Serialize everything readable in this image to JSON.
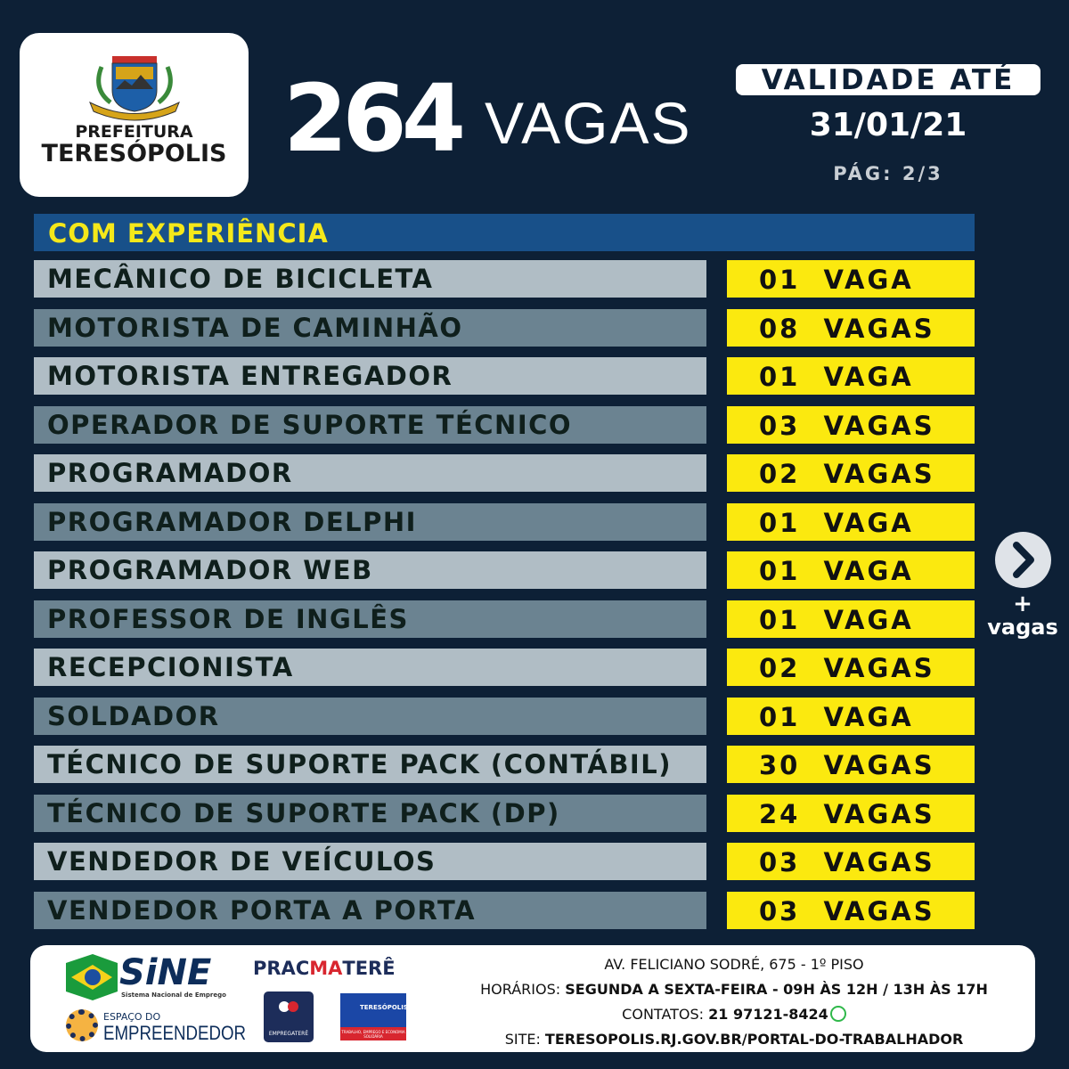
{
  "header": {
    "logo": {
      "line1": "PREFEITURA",
      "line2": "TERESÓPOLIS"
    },
    "count": "264",
    "count_label": "VAGAS",
    "validity_label": "VALIDADE ATÉ",
    "validity_date": "31/01/21",
    "page": "PÁG:  2/3"
  },
  "section_title": "COM EXPERIÊNCIA",
  "jobs": [
    {
      "title": "MECÂNICO DE BICICLETA",
      "qty": "01  VAGA"
    },
    {
      "title": "MOTORISTA DE CAMINHÃO",
      "qty": "08  VAGAS"
    },
    {
      "title": "MOTORISTA ENTREGADOR",
      "qty": "01  VAGA"
    },
    {
      "title": "OPERADOR DE SUPORTE TÉCNICO",
      "qty": "03  VAGAS"
    },
    {
      "title": "PROGRAMADOR",
      "qty": "02  VAGAS"
    },
    {
      "title": "PROGRAMADOR DELPHI",
      "qty": "01  VAGA"
    },
    {
      "title": "PROGRAMADOR WEB",
      "qty": "01  VAGA"
    },
    {
      "title": "PROFESSOR DE INGLÊS",
      "qty": "01  VAGA"
    },
    {
      "title": "RECEPCIONISTA",
      "qty": "02  VAGAS"
    },
    {
      "title": "SOLDADOR",
      "qty": "01  VAGA"
    },
    {
      "title": "TÉCNICO DE SUPORTE PACK (CONTÁBIL)",
      "qty": "30  VAGAS"
    },
    {
      "title": "TÉCNICO DE SUPORTE  PACK (DP)",
      "qty": "24  VAGAS"
    },
    {
      "title": "VENDEDOR DE VEÍCULOS",
      "qty": "03  VAGAS"
    },
    {
      "title": "VENDEDOR PORTA A PORTA",
      "qty": "03  VAGAS"
    }
  ],
  "next": {
    "icon": "chevron-right-icon",
    "plus": "+",
    "label": "vagas"
  },
  "footer": {
    "logos": {
      "sine": "SiNE",
      "sine_sub": "Sistema Nacional de Emprego",
      "espaco1": "ESPAÇO DO",
      "espaco2": "EMPREENDEDOR",
      "praca_a": "PRAC",
      "praca_b": "MA",
      "praca_c": "TERÊ",
      "emprega": "EMPREGATERÊ",
      "teresopolis": "TERESÓPOLIS",
      "teresopolis_sub": "TRABALHO, EMPREGO E ECONOMIA SOLIDÁRIA"
    },
    "address": "AV. FELICIANO SODRÉ, 675 - 1º PISO",
    "hours_label": "HORÁRIOS: ",
    "hours": "SEGUNDA A SEXTA-FEIRA - 09H ÀS 12H / 13H ÀS 17H",
    "contacts_label": "CONTATOS: ",
    "contacts": "21 97121-8424",
    "site_label": "SITE: ",
    "site": "TERESOPOLIS.RJ.GOV.BR/PORTAL-DO-TRABALHADOR"
  },
  "colors": {
    "background": "#0d2036",
    "section": "#185089",
    "highlight": "#fbe90f",
    "row_light": "#b0bdc5",
    "row_dark": "#6b8391"
  }
}
